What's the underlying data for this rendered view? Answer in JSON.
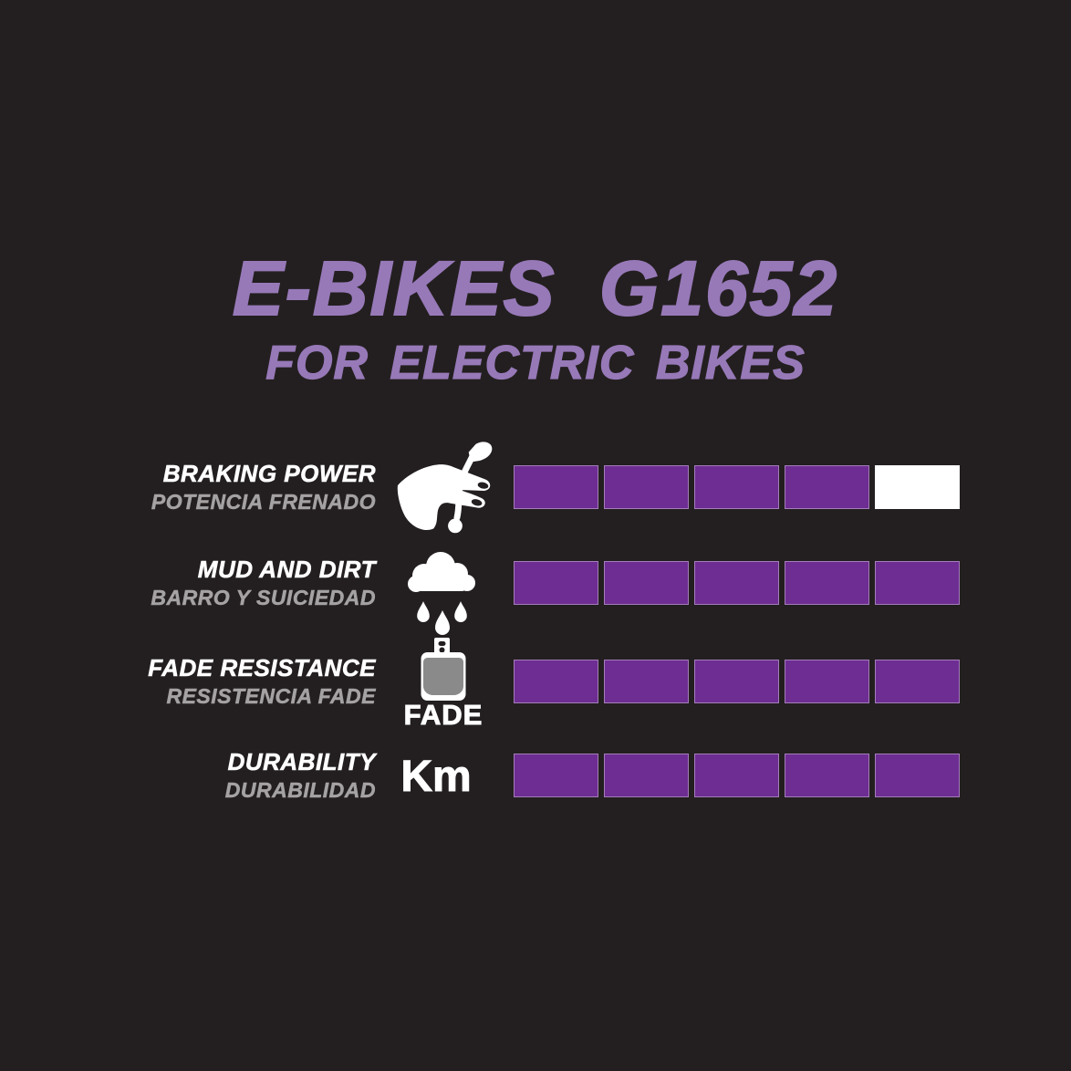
{
  "theme": {
    "background": "#231f20",
    "accent_purple": "#9779b8",
    "bar_purple": "#6d2d92",
    "bar_empty": "#ffffff",
    "label_white": "#ffffff",
    "label_gray": "#a5a2a3",
    "pad_gray": "#8a8a8a"
  },
  "header": {
    "title": "E-BIKES G1652",
    "subtitle": "FOR ELECTRIC BIKES"
  },
  "chart_data": {
    "type": "bar",
    "title": "E-BIKES G1652",
    "subtitle": "FOR ELECTRIC BIKES",
    "max_rating": 5,
    "filled_color": "#6d2d92",
    "empty_color": "#ffffff",
    "legend_position": "none",
    "rows": [
      {
        "label_en": "BRAKING POWER",
        "label_es": "POTENCIA FRENADO",
        "icon": "brake-lever-hand-icon",
        "icon_caption": "",
        "value": 4
      },
      {
        "label_en": "MUD AND DIRT",
        "label_es": "BARRO Y SUICIEDAD",
        "icon": "rain-cloud-icon",
        "icon_caption": "",
        "value": 5
      },
      {
        "label_en": "FADE RESISTANCE",
        "label_es": "RESISTENCIA FADE",
        "icon": "brake-pad-fade-icon",
        "icon_caption": "FADE",
        "value": 5
      },
      {
        "label_en": "DURABILITY",
        "label_es": "DURABILIDAD",
        "icon": "km-icon",
        "icon_caption": "Km",
        "value": 5
      }
    ]
  }
}
